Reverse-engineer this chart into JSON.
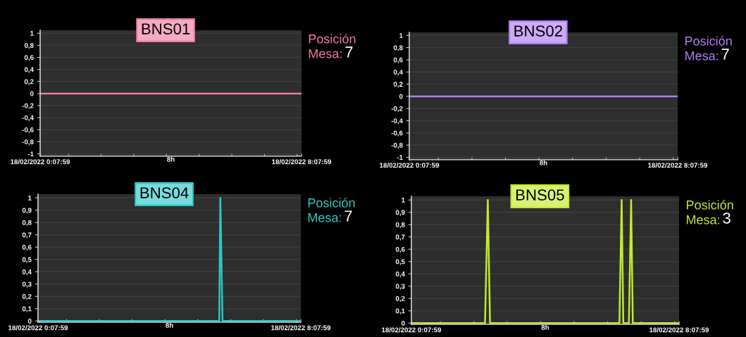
{
  "chart_data": [
    {
      "type": "line",
      "title": "BNS01",
      "xlabel": "8h",
      "annotations": [
        "Posición",
        "Mesa:",
        "7"
      ],
      "x": [
        "2022-02-18T00:07:59",
        "2022-02-18T08:07:59"
      ],
      "series": [
        {
          "color": "#f07aa3",
          "values": [
            0,
            0
          ]
        }
      ],
      "xlim": [
        "2022-02-18T00:07:59",
        "2022-02-18T08:07:59"
      ],
      "xticks": [
        {
          "value": "2022-02-18T00:07:59",
          "label": "18/02/2022 0:07:59"
        },
        {
          "value": "2022-02-18T01:00",
          "label": null
        },
        {
          "value": "2022-02-18T02:00",
          "label": null
        },
        {
          "value": "2022-02-18T03:00",
          "label": null
        },
        {
          "value": "2022-02-18T04:00",
          "label": null
        },
        {
          "value": "2022-02-18T05:00",
          "label": null
        },
        {
          "value": "2022-02-18T06:00",
          "label": null
        },
        {
          "value": "2022-02-18T07:00",
          "label": null
        },
        {
          "value": "2022-02-18T08:00",
          "label": null
        },
        {
          "value": "2022-02-18T08:07:59",
          "label": "18/02/2022 8:07:59"
        }
      ],
      "ylim": [
        -1.04,
        1.05
      ],
      "yticks": [
        {
          "value": -1,
          "label": "-1"
        },
        {
          "value": -0.8,
          "label": "-0,8"
        },
        {
          "value": -0.6,
          "label": "-0,6"
        },
        {
          "value": -0.4,
          "label": "-0,4"
        },
        {
          "value": -0.2,
          "label": "-0,2"
        },
        {
          "value": 0,
          "label": "0"
        },
        {
          "value": 0.2,
          "label": "0,2"
        },
        {
          "value": 0.4,
          "label": "0,4"
        },
        {
          "value": 0.6,
          "label": "0,6"
        },
        {
          "value": 0.8,
          "label": "0,8"
        },
        {
          "value": 1,
          "label": "1"
        }
      ],
      "grid": "y",
      "legend": false,
      "marker": "none",
      "line_style": "solid"
    },
    {
      "type": "line",
      "title": "BNS02",
      "xlabel": "8h",
      "annotations": [
        "Posición",
        "Mesa:",
        "7"
      ],
      "x": [
        "2022-02-18T00:07:59",
        "2022-02-18T08:07:59"
      ],
      "series": [
        {
          "color": "#b07cf2",
          "values": [
            0,
            0
          ]
        }
      ],
      "xlim": [
        "2022-02-18T00:07:59",
        "2022-02-18T08:07:59"
      ],
      "xticks": [
        {
          "value": "2022-02-18T00:07:59",
          "label": "18/02/2022 0:07:59"
        },
        {
          "value": "2022-02-18T01:00",
          "label": null
        },
        {
          "value": "2022-02-18T02:00",
          "label": null
        },
        {
          "value": "2022-02-18T03:00",
          "label": null
        },
        {
          "value": "2022-02-18T04:00",
          "label": null
        },
        {
          "value": "2022-02-18T05:00",
          "label": null
        },
        {
          "value": "2022-02-18T06:00",
          "label": null
        },
        {
          "value": "2022-02-18T07:00",
          "label": null
        },
        {
          "value": "2022-02-18T08:00",
          "label": null
        },
        {
          "value": "2022-02-18T08:07:59",
          "label": "18/02/2022 8:07:59"
        }
      ],
      "ylim": [
        -1.04,
        1.05
      ],
      "yticks": [
        {
          "value": -1,
          "label": "-1"
        },
        {
          "value": -0.8,
          "label": "-0,8"
        },
        {
          "value": -0.6,
          "label": "-0,6"
        },
        {
          "value": -0.4,
          "label": "-0,4"
        },
        {
          "value": -0.2,
          "label": "-0,2"
        },
        {
          "value": 0,
          "label": "0"
        },
        {
          "value": 0.2,
          "label": "0,2"
        },
        {
          "value": 0.4,
          "label": "0,4"
        },
        {
          "value": 0.6,
          "label": "0,6"
        },
        {
          "value": 0.8,
          "label": "0,8"
        },
        {
          "value": 1,
          "label": "1"
        }
      ],
      "grid": "y",
      "legend": false,
      "marker": "none",
      "line_style": "solid"
    },
    {
      "type": "line",
      "title": "BNS04",
      "xlabel": "8h",
      "annotations": [
        "Posición",
        "Mesa:",
        "7"
      ],
      "x": [
        "2022-02-18T00:07:59",
        "2022-02-18T05:39",
        "2022-02-18T05:41",
        "2022-02-18T05:45",
        "2022-02-18T08:07:59"
      ],
      "series": [
        {
          "color": "#2ec8c8",
          "values": [
            0,
            0,
            1,
            0,
            0
          ]
        }
      ],
      "xlim": [
        "2022-02-18T00:07:59",
        "2022-02-18T08:07:59"
      ],
      "xticks": [
        {
          "value": "2022-02-18T00:07:59",
          "label": "18/02/2022 0:07:59"
        },
        {
          "value": "2022-02-18T01:00",
          "label": null
        },
        {
          "value": "2022-02-18T02:00",
          "label": null
        },
        {
          "value": "2022-02-18T03:00",
          "label": null
        },
        {
          "value": "2022-02-18T04:00",
          "label": null
        },
        {
          "value": "2022-02-18T05:00",
          "label": null
        },
        {
          "value": "2022-02-18T06:00",
          "label": null
        },
        {
          "value": "2022-02-18T07:00",
          "label": null
        },
        {
          "value": "2022-02-18T08:00",
          "label": null
        },
        {
          "value": "2022-02-18T08:07:59",
          "label": "18/02/2022 8:07:59"
        }
      ],
      "ylim": [
        -0.01,
        1.03
      ],
      "yticks": [
        {
          "value": 0,
          "label": "0"
        },
        {
          "value": 0.1,
          "label": "0,1"
        },
        {
          "value": 0.2,
          "label": "0,2"
        },
        {
          "value": 0.3,
          "label": "0,3"
        },
        {
          "value": 0.4,
          "label": "0,4"
        },
        {
          "value": 0.5,
          "label": "0,5"
        },
        {
          "value": 0.6,
          "label": "0,6"
        },
        {
          "value": 0.7,
          "label": "0,7"
        },
        {
          "value": 0.8,
          "label": "0,8"
        },
        {
          "value": 0.9,
          "label": "0,9"
        },
        {
          "value": 1,
          "label": "1"
        }
      ],
      "grid": "y",
      "legend": false,
      "marker": "none",
      "line_style": "solid"
    },
    {
      "type": "line",
      "title": "BNS05",
      "xlabel": "8h",
      "annotations": [
        "Posición",
        "Mesa:",
        "3"
      ],
      "x": [
        "2022-02-18T00:07:59",
        "2022-02-18T02:20",
        "2022-02-18T02:25",
        "2022-02-18T02:29",
        "2022-02-18T06:21",
        "2022-02-18T06:25",
        "2022-02-18T06:28",
        "2022-02-18T06:38",
        "2022-02-18T06:42",
        "2022-02-18T06:45",
        "2022-02-18T08:07:59"
      ],
      "series": [
        {
          "color": "#c2ea2c",
          "values": [
            0,
            0,
            1,
            0,
            0,
            1,
            0,
            0,
            1,
            0,
            0
          ]
        }
      ],
      "xlim": [
        "2022-02-18T00:07:59",
        "2022-02-18T08:07:59"
      ],
      "xticks": [
        {
          "value": "2022-02-18T00:07:59",
          "label": "18/02/2022 0:07:59"
        },
        {
          "value": "2022-02-18T01:00",
          "label": null
        },
        {
          "value": "2022-02-18T02:00",
          "label": null
        },
        {
          "value": "2022-02-18T03:00",
          "label": null
        },
        {
          "value": "2022-02-18T04:00",
          "label": null
        },
        {
          "value": "2022-02-18T05:00",
          "label": null
        },
        {
          "value": "2022-02-18T06:00",
          "label": null
        },
        {
          "value": "2022-02-18T07:00",
          "label": null
        },
        {
          "value": "2022-02-18T08:00",
          "label": null
        },
        {
          "value": "2022-02-18T08:07:59",
          "label": "18/02/2022 8:07:59"
        }
      ],
      "ylim": [
        -0.01,
        1.03
      ],
      "yticks": [
        {
          "value": 0,
          "label": "0"
        },
        {
          "value": 0.1,
          "label": "0,1"
        },
        {
          "value": 0.2,
          "label": "0,2"
        },
        {
          "value": 0.3,
          "label": "0,3"
        },
        {
          "value": 0.4,
          "label": "0,4"
        },
        {
          "value": 0.5,
          "label": "0,5"
        },
        {
          "value": 0.6,
          "label": "0,6"
        },
        {
          "value": 0.7,
          "label": "0,7"
        },
        {
          "value": 0.8,
          "label": "0,8"
        },
        {
          "value": 0.9,
          "label": "0,9"
        },
        {
          "value": 1,
          "label": "1"
        }
      ],
      "grid": "y",
      "legend": false,
      "marker": "none",
      "line_style": "solid"
    }
  ]
}
